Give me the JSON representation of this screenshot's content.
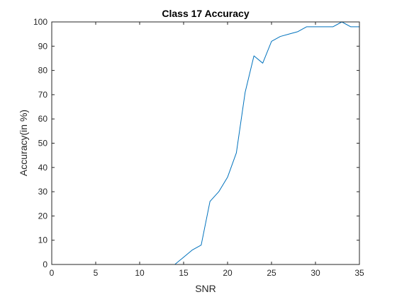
{
  "chart_data": {
    "type": "line",
    "title": "Class 17 Accuracy",
    "xlabel": "SNR",
    "ylabel": "Accuracy(in %)",
    "xlim": [
      0,
      35
    ],
    "ylim": [
      0,
      100
    ],
    "xticks": [
      0,
      5,
      10,
      15,
      20,
      25,
      30,
      35
    ],
    "yticks": [
      0,
      10,
      20,
      30,
      40,
      50,
      60,
      70,
      80,
      90,
      100
    ],
    "grid": false,
    "series": [
      {
        "color": "#0072BD",
        "x": [
          1,
          2,
          3,
          4,
          5,
          6,
          7,
          8,
          9,
          10,
          11,
          12,
          13,
          14,
          15,
          16,
          17,
          18,
          19,
          20,
          21,
          22,
          23,
          24,
          25,
          26,
          27,
          28,
          29,
          30,
          31,
          32,
          33,
          34,
          35
        ],
        "y": [
          0,
          0,
          0,
          0,
          0,
          0,
          0,
          0,
          0,
          0,
          0,
          0,
          0,
          0,
          3,
          6,
          8,
          26,
          30,
          36,
          46,
          71,
          86,
          83,
          92,
          94,
          95,
          96,
          98,
          98,
          98,
          98,
          100,
          98,
          98
        ]
      }
    ]
  }
}
